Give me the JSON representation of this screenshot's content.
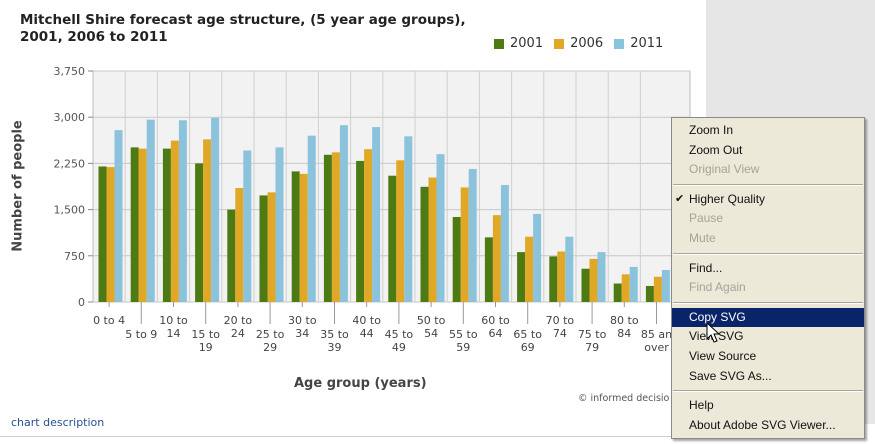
{
  "title": "Mitchell Shire forecast age structure, (5 year age groups), 2001, 2006 to 2011",
  "colors": {
    "2001": "#4d7a12",
    "2006": "#e0a826",
    "2011": "#8cc3dc",
    "menu_highlight": "#0a246a"
  },
  "legend": [
    {
      "label": "2001",
      "color": "#4d7a12"
    },
    {
      "label": "2006",
      "color": "#e0a826"
    },
    {
      "label": "2011",
      "color": "#8cc3dc"
    }
  ],
  "chart_data": {
    "type": "bar",
    "title": "Mitchell Shire forecast age structure, (5 year age groups), 2001, 2006 to 2011",
    "xlabel": "Age group (years)",
    "ylabel": "Number of people",
    "ylim": [
      0,
      3750
    ],
    "yticks": [
      "0",
      "750",
      "1,500",
      "2,250",
      "3,000",
      "3,750"
    ],
    "ytick_values": [
      0,
      750,
      1500,
      2250,
      3000,
      3750
    ],
    "grid": true,
    "legend_position": "top-right",
    "categories": [
      {
        "line1": "0 to 4",
        "line2": ""
      },
      {
        "line1": "5 to 9",
        "line2": ""
      },
      {
        "line1": "10 to",
        "line2": "14"
      },
      {
        "line1": "15 to",
        "line2": "19"
      },
      {
        "line1": "20 to",
        "line2": "24"
      },
      {
        "line1": "25 to",
        "line2": "29"
      },
      {
        "line1": "30 to",
        "line2": "34"
      },
      {
        "line1": "35 to",
        "line2": "39"
      },
      {
        "line1": "40 to",
        "line2": "44"
      },
      {
        "line1": "45 to",
        "line2": "49"
      },
      {
        "line1": "50 to",
        "line2": "54"
      },
      {
        "line1": "55 to",
        "line2": "59"
      },
      {
        "line1": "60 to",
        "line2": "64"
      },
      {
        "line1": "65 to",
        "line2": "69"
      },
      {
        "line1": "70 to",
        "line2": "74"
      },
      {
        "line1": "75 to",
        "line2": "79"
      },
      {
        "line1": "80 to",
        "line2": "84"
      },
      {
        "line1": "85 an",
        "line2": "over"
      }
    ],
    "series": [
      {
        "name": "2001",
        "values": [
          2200,
          2510,
          2490,
          2250,
          1500,
          1730,
          2120,
          2390,
          2290,
          2050,
          1870,
          1380,
          1050,
          810,
          740,
          540,
          300,
          260
        ]
      },
      {
        "name": "2006",
        "values": [
          2190,
          2490,
          2620,
          2640,
          1850,
          1780,
          2080,
          2430,
          2480,
          2300,
          2020,
          1860,
          1410,
          1060,
          820,
          700,
          450,
          410
        ]
      },
      {
        "name": "2011",
        "values": [
          2790,
          2960,
          2950,
          2990,
          2460,
          2510,
          2700,
          2870,
          2840,
          2690,
          2400,
          2160,
          1900,
          1430,
          1060,
          810,
          570,
          520
        ]
      }
    ]
  },
  "credit": "© informed decisio",
  "chart_description_link": "chart description",
  "context_menu": {
    "groups": [
      [
        {
          "label": "Zoom In",
          "disabled": false,
          "checked": false,
          "highlighted": false
        },
        {
          "label": "Zoom Out",
          "disabled": false,
          "checked": false,
          "highlighted": false
        },
        {
          "label": "Original View",
          "disabled": true,
          "checked": false,
          "highlighted": false
        }
      ],
      [
        {
          "label": "Higher Quality",
          "disabled": false,
          "checked": true,
          "highlighted": false
        },
        {
          "label": "Pause",
          "disabled": true,
          "checked": false,
          "highlighted": false
        },
        {
          "label": "Mute",
          "disabled": true,
          "checked": false,
          "highlighted": false
        }
      ],
      [
        {
          "label": "Find...",
          "disabled": false,
          "checked": false,
          "highlighted": false
        },
        {
          "label": "Find Again",
          "disabled": true,
          "checked": false,
          "highlighted": false
        }
      ],
      [
        {
          "label": "Copy SVG",
          "disabled": false,
          "checked": false,
          "highlighted": true
        },
        {
          "label": "View SVG",
          "disabled": false,
          "checked": false,
          "highlighted": false
        },
        {
          "label": "View Source",
          "disabled": false,
          "checked": false,
          "highlighted": false
        },
        {
          "label": "Save SVG As...",
          "disabled": false,
          "checked": false,
          "highlighted": false
        }
      ],
      [
        {
          "label": "Help",
          "disabled": false,
          "checked": false,
          "highlighted": false
        },
        {
          "label": "About Adobe SVG Viewer...",
          "disabled": false,
          "checked": false,
          "highlighted": false
        }
      ]
    ]
  }
}
